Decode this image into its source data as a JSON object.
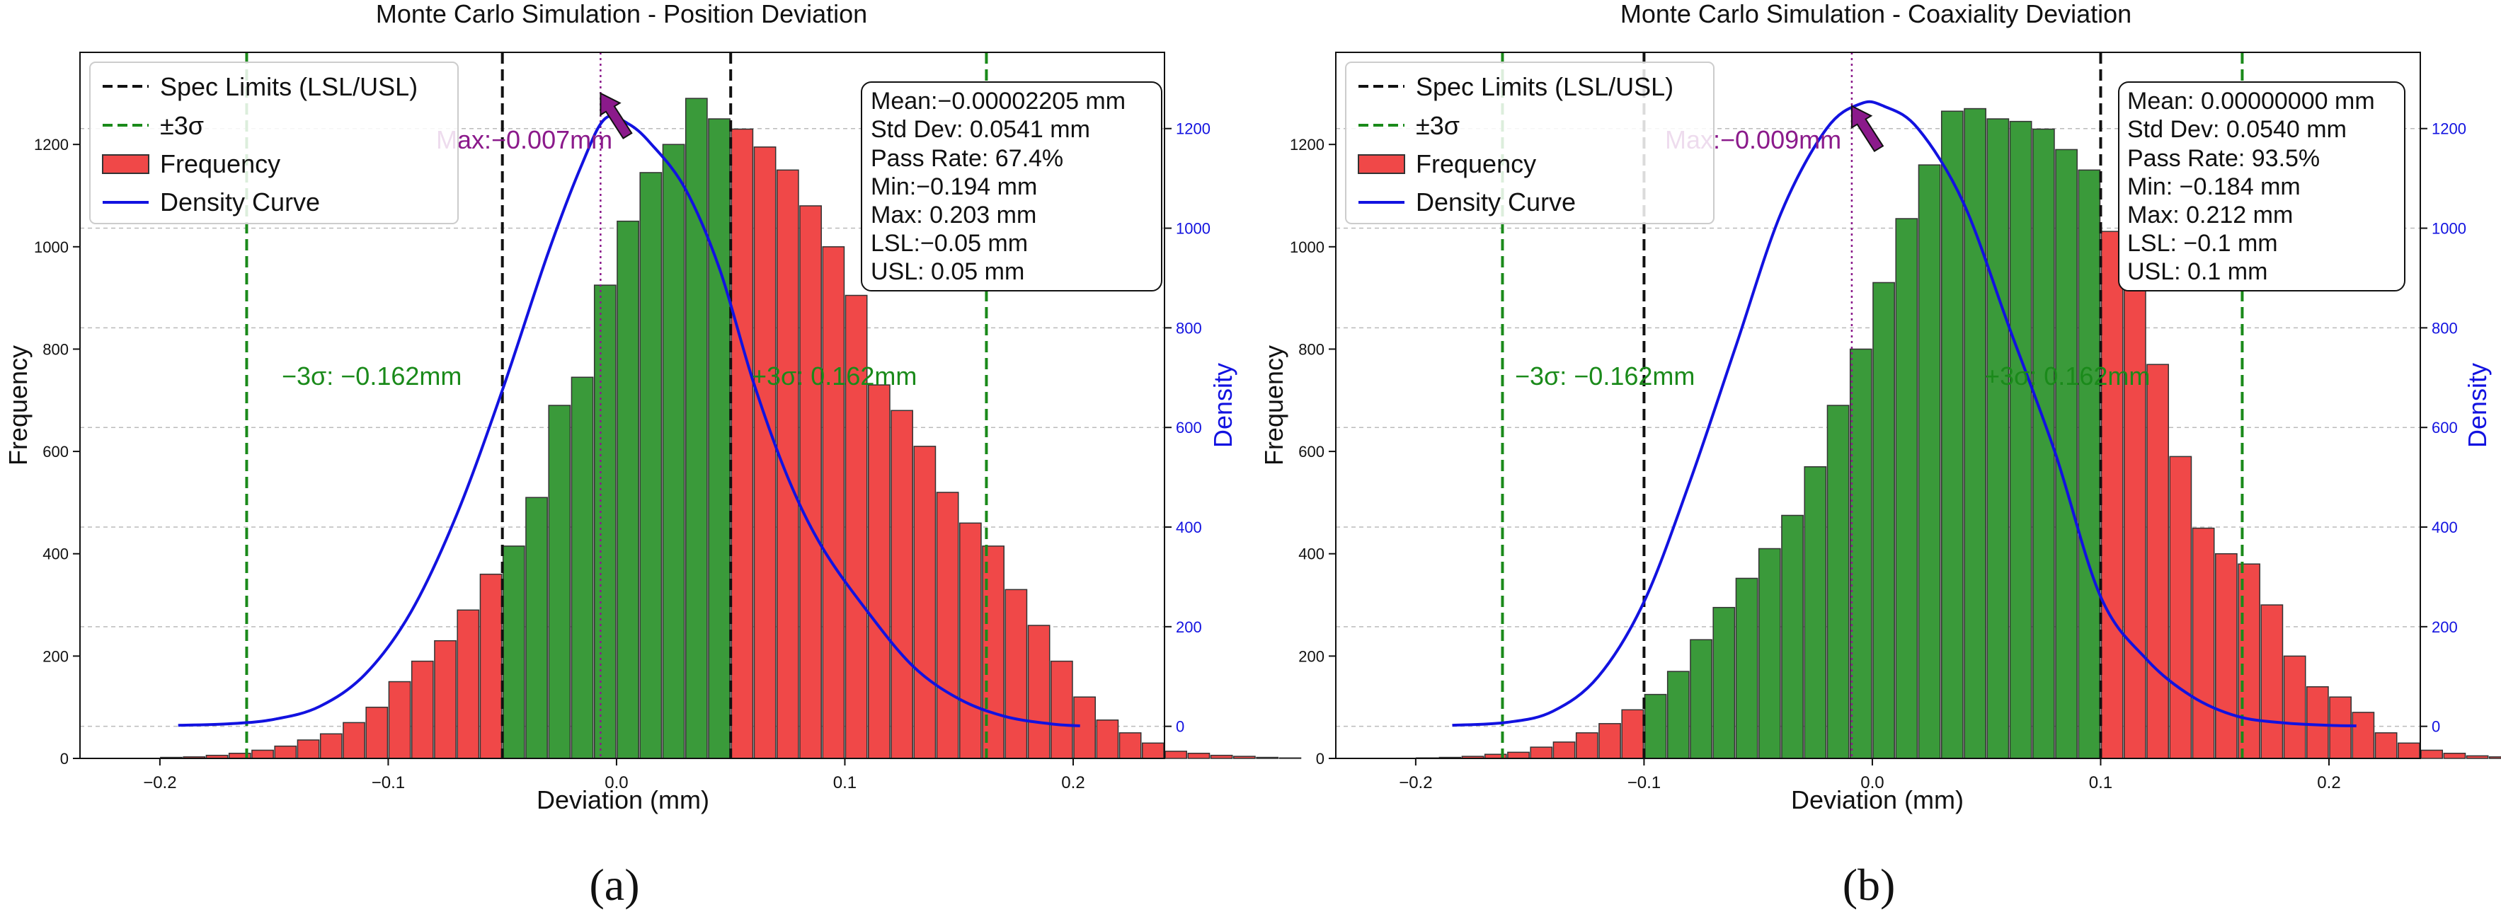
{
  "figure": {
    "colors": {
      "pass_bar": "#3a9a3a",
      "fail_bar": "#f04848",
      "bar_edge": "#333333",
      "density": "#1212e0",
      "spec": "#111111",
      "sigma": "#1a8a1a",
      "max_marker": "#8b1a8b",
      "grid": "#bbbbbb"
    }
  },
  "chart_data": [
    {
      "id": "a",
      "type": "bar",
      "title": "Monte Carlo Simulation - Position Deviation",
      "panel_label": "(a)",
      "xlabel": "Deviation (mm)",
      "ylabel": "Frequency",
      "y2label": "Density",
      "xlim": [
        -0.235,
        0.24
      ],
      "ylim": [
        0,
        1380
      ],
      "y2lim": [
        -64.4,
        1353
      ],
      "xticks": [
        -0.2,
        -0.1,
        0.0,
        0.1,
        0.2
      ],
      "xtick_labels": [
        "−0.2",
        "−0.1",
        "0.0",
        "0.1",
        "0.2"
      ],
      "yticks": [
        0,
        200,
        400,
        600,
        800,
        1000,
        1200
      ],
      "yticks2": [
        0,
        200,
        400,
        600,
        800,
        1000,
        1200
      ],
      "bin_width": 0.01,
      "bin_start": -0.2,
      "frequencies": [
        2,
        3,
        6,
        10,
        16,
        24,
        36,
        48,
        70,
        100,
        150,
        190,
        230,
        290,
        360,
        415,
        510,
        690,
        745,
        925,
        1050,
        1145,
        1200,
        1290,
        1250,
        1230,
        1195,
        1150,
        1080,
        1000,
        905,
        730,
        680,
        610,
        520,
        460,
        415,
        330,
        260,
        190,
        120,
        75,
        50,
        30,
        14,
        10,
        6,
        4,
        2,
        1
      ],
      "spec_limits": [
        -0.05,
        0.05
      ],
      "sigma_limits": [
        -0.162,
        0.162
      ],
      "density_x": [
        -0.192,
        -0.17,
        -0.15,
        -0.13,
        -0.11,
        -0.09,
        -0.07,
        -0.05,
        -0.03,
        -0.015,
        -0.005,
        0.005,
        0.015,
        0.03,
        0.045,
        0.06,
        0.075,
        0.09,
        0.11,
        0.13,
        0.15,
        0.17,
        0.19,
        0.203
      ],
      "density_y": [
        2,
        5,
        14,
        40,
        105,
        230,
        425,
        675,
        950,
        1130,
        1220,
        1210,
        1170,
        1080,
        920,
        690,
        500,
        360,
        230,
        120,
        55,
        20,
        5,
        1
      ],
      "legend": [
        "Spec Limits (LSL/USL)",
        "±3σ",
        "Frequency",
        "Density Curve"
      ],
      "stats": [
        "Mean:−0.00002205 mm",
        "Std Dev: 0.0541 mm",
        "Pass Rate: 67.4%",
        "Min:−0.194 mm",
        "Max: 0.203 mm",
        "LSL:−0.05 mm",
        "USL: 0.05 mm"
      ],
      "sigma_labels": [
        "−3σ: −0.162mm",
        "+3σ: 0.162mm"
      ],
      "max_label": "Max:−0.007mm",
      "max_x": -0.007,
      "max_freq": 1300
    },
    {
      "id": "b",
      "type": "bar",
      "title": "Monte Carlo Simulation - Coaxiality Deviation",
      "panel_label": "(b)",
      "xlabel": "Deviation (mm)",
      "ylabel": "Frequency",
      "y2label": "Density",
      "xlim": [
        -0.235,
        0.24
      ],
      "ylim": [
        0,
        1380
      ],
      "y2lim": [
        -64.4,
        1353
      ],
      "xticks": [
        -0.2,
        -0.1,
        0.0,
        0.1,
        0.2
      ],
      "xtick_labels": [
        "−0.2",
        "−0.1",
        "0.0",
        "0.1",
        "0.2"
      ],
      "yticks": [
        0,
        200,
        400,
        600,
        800,
        1000,
        1200
      ],
      "yticks2": [
        0,
        200,
        400,
        600,
        800,
        1000,
        1200
      ],
      "bin_width": 0.01,
      "bin_start": -0.2,
      "frequencies": [
        1,
        2,
        4,
        8,
        12,
        22,
        32,
        50,
        68,
        95,
        125,
        170,
        232,
        295,
        352,
        410,
        475,
        570,
        690,
        800,
        930,
        1055,
        1160,
        1265,
        1270,
        1250,
        1245,
        1230,
        1190,
        1150,
        1030,
        920,
        770,
        590,
        450,
        400,
        380,
        300,
        200,
        140,
        120,
        90,
        50,
        30,
        16,
        10,
        5,
        3,
        2,
        1
      ],
      "spec_limits": [
        -0.1,
        0.1
      ],
      "sigma_limits": [
        -0.162,
        0.162
      ],
      "density_x": [
        -0.184,
        -0.16,
        -0.14,
        -0.12,
        -0.1,
        -0.08,
        -0.06,
        -0.04,
        -0.02,
        -0.005,
        0.005,
        0.02,
        0.04,
        0.06,
        0.08,
        0.1,
        0.12,
        0.14,
        0.16,
        0.18,
        0.2,
        0.212
      ],
      "density_y": [
        2,
        8,
        30,
        100,
        250,
        490,
        760,
        1030,
        1200,
        1250,
        1245,
        1200,
        1050,
        800,
        550,
        260,
        135,
        60,
        20,
        7,
        2,
        1
      ],
      "legend": [
        "Spec Limits (LSL/USL)",
        "±3σ",
        "Frequency",
        "Density Curve"
      ],
      "stats": [
        "Mean: 0.00000000 mm",
        "Std Dev: 0.0540 mm",
        "Pass Rate: 93.5%",
        "Min: −0.184 mm",
        "Max: 0.212 mm",
        "LSL: −0.1 mm",
        "USL: 0.1 mm"
      ],
      "sigma_labels": [
        "−3σ: −0.162mm",
        "+3σ: 0.162mm"
      ],
      "max_label": "Max:−0.009mm",
      "max_x": -0.009,
      "max_freq": 1275
    }
  ]
}
